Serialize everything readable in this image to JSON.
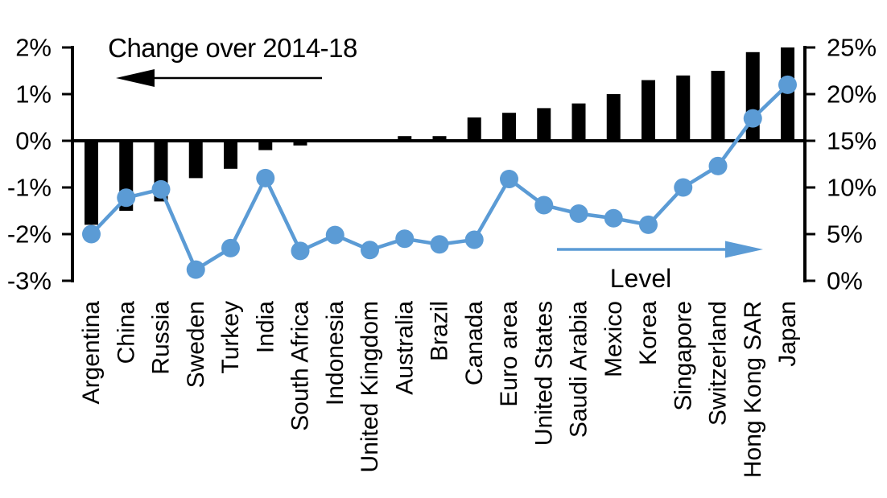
{
  "chart_data": {
    "type": "bar",
    "subtype": "dual-axis bar + line combo",
    "categories": [
      "Argentina",
      "China",
      "Russia",
      "Sweden",
      "Turkey",
      "India",
      "South Africa",
      "Indonesia",
      "United Kingdom",
      "Australia",
      "Brazil",
      "Canada",
      "Euro area",
      "United States",
      "Saudi Arabia",
      "Mexico",
      "Korea",
      "Singapore",
      "Switzerland",
      "Hong Kong SAR",
      "Japan"
    ],
    "series": [
      {
        "name": "Change over 2014-18",
        "type": "bar",
        "axis": "left",
        "unit": "percentage points",
        "values": [
          -1.8,
          -1.5,
          -1.3,
          -0.8,
          -0.6,
          -0.2,
          -0.1,
          0,
          0,
          0.1,
          0.1,
          0.5,
          0.6,
          0.7,
          0.8,
          1.0,
          1.3,
          1.4,
          1.5,
          1.9,
          2.0
        ]
      },
      {
        "name": "Level",
        "type": "line",
        "axis": "right",
        "unit": "%",
        "values": [
          5.0,
          8.9,
          9.8,
          1.2,
          3.5,
          11.0,
          3.2,
          4.9,
          3.3,
          4.5,
          3.9,
          4.4,
          10.9,
          8.1,
          7.2,
          6.7,
          6.0,
          10.0,
          12.3,
          17.4,
          21.0
        ]
      }
    ],
    "left_axis": {
      "min": -3,
      "max": 2,
      "step": 1,
      "tick_labels": [
        "2%",
        "1%",
        "0%",
        "-1%",
        "-2%",
        "-3%"
      ]
    },
    "right_axis": {
      "min": 0,
      "max": 25,
      "step": 5,
      "tick_labels": [
        "25%",
        "20%",
        "15%",
        "10%",
        "5%",
        "0%"
      ]
    },
    "annotations": [
      {
        "text": "Change over 2014-18",
        "arrow": "left",
        "color": "#000000"
      },
      {
        "text": "Level",
        "arrow": "right",
        "color": "#5b9bd5"
      }
    ],
    "colors": {
      "bar": "#000000",
      "line": "#5b9bd5",
      "axis": "#000000",
      "background": "#ffffff"
    },
    "legend_position": "none",
    "grid": false
  }
}
